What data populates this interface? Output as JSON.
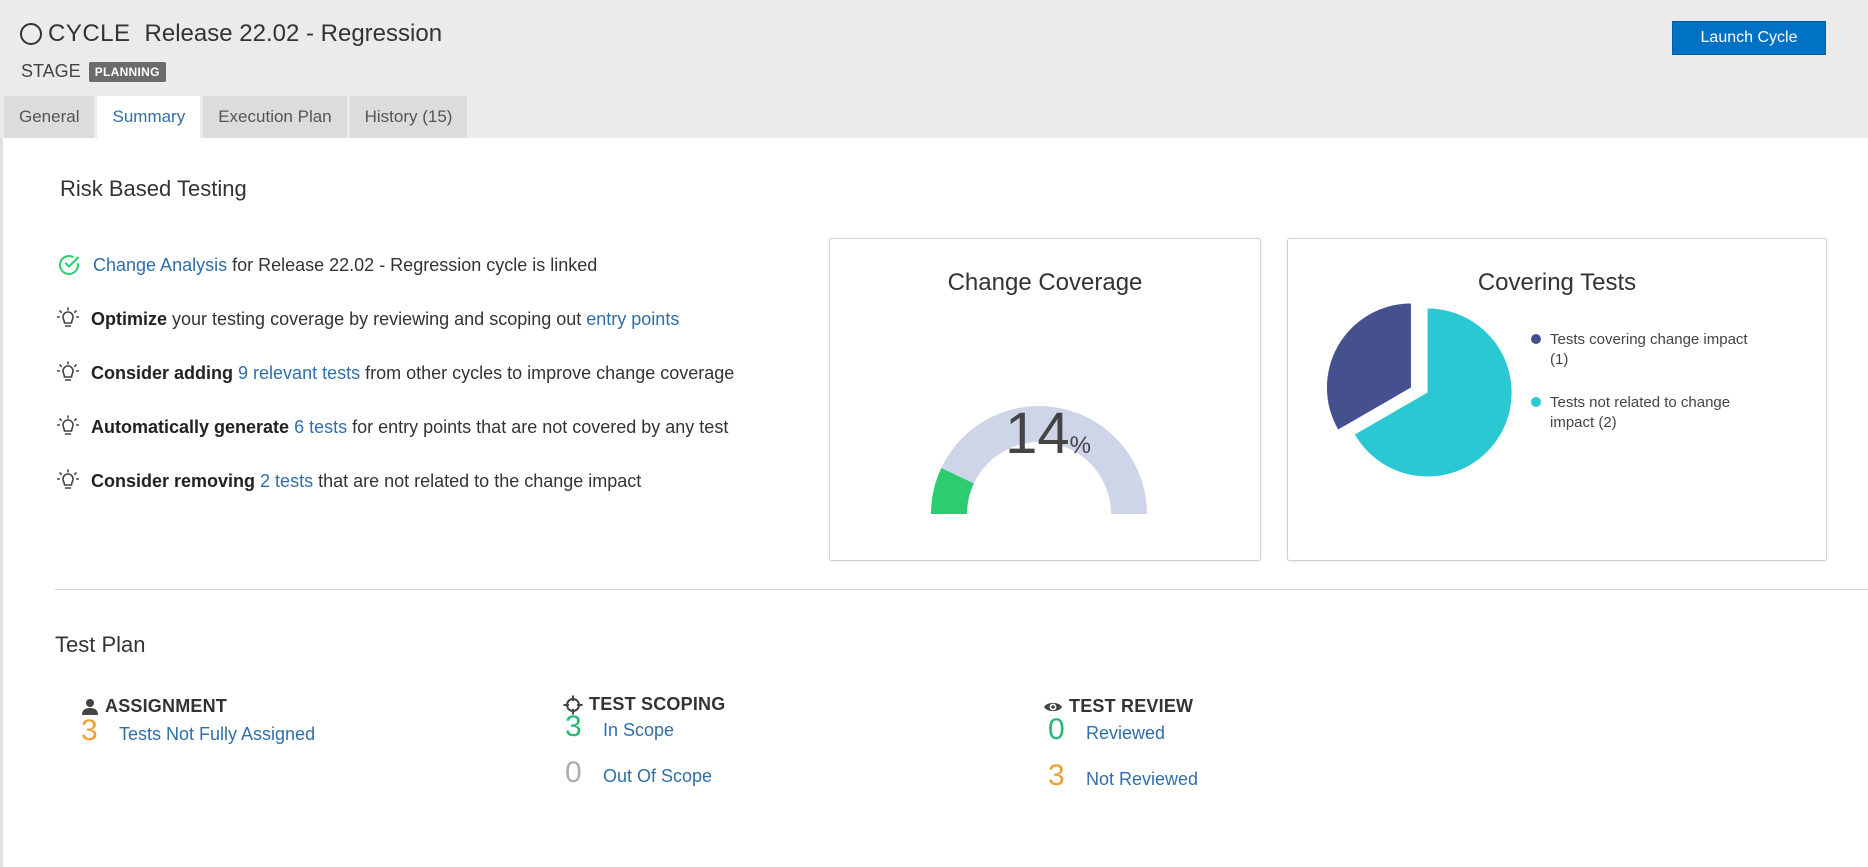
{
  "header": {
    "cycle_label": "CYCLE",
    "cycle_name": "Release 22.02 - Regression",
    "stage_label": "STAGE",
    "stage_value": "PLANNING",
    "launch_button": "Launch Cycle"
  },
  "tabs": [
    {
      "label": "General"
    },
    {
      "label": "Summary",
      "active": true
    },
    {
      "label": "Execution Plan"
    },
    {
      "label": "History (15)"
    }
  ],
  "risk": {
    "title": "Risk Based Testing",
    "items": [
      {
        "icon": "check-circle-icon",
        "link": "Change Analysis",
        "text": " for Release 22.02 - Regression cycle is linked"
      },
      {
        "icon": "lightbulb-icon",
        "bold": "Optimize",
        "text": " your testing coverage by reviewing and scoping out ",
        "link": "entry points"
      },
      {
        "icon": "lightbulb-icon",
        "bold": "Consider adding",
        "link": "9 relevant tests",
        "text": " from other cycles to improve change coverage"
      },
      {
        "icon": "lightbulb-icon",
        "bold": "Automatically generate",
        "link": "6 tests",
        "text": " for entry points that are not covered by any test"
      },
      {
        "icon": "lightbulb-icon",
        "bold": "Consider removing",
        "link": "2 tests",
        "text": " that are not related to the change impact"
      }
    ]
  },
  "coverage": {
    "title": "Change Coverage",
    "value": "14",
    "unit": "%",
    "percent": 14,
    "colors": {
      "filled": "#2ecc71",
      "track": "#cfd5e8"
    }
  },
  "covering": {
    "title": "Covering Tests",
    "slices": [
      {
        "label": "Tests covering change impact (1)",
        "value": 1,
        "color": "#45518f"
      },
      {
        "label": "Tests not related to change impact (2)",
        "value": 2,
        "color": "#2ac8d2"
      }
    ]
  },
  "plan": {
    "title": "Test Plan",
    "assignment": {
      "title": "ASSIGNMENT",
      "metrics": [
        {
          "value": "3",
          "label": "Tests Not Fully Assigned"
        }
      ]
    },
    "scoping": {
      "title": "TEST SCOPING",
      "metrics": [
        {
          "value": "3",
          "label": "In Scope"
        },
        {
          "value": "0",
          "label": "Out Of Scope"
        }
      ]
    },
    "review": {
      "title": "TEST REVIEW",
      "metrics": [
        {
          "value": "0",
          "label": "Reviewed"
        },
        {
          "value": "3",
          "label": "Not Reviewed"
        }
      ]
    }
  }
}
